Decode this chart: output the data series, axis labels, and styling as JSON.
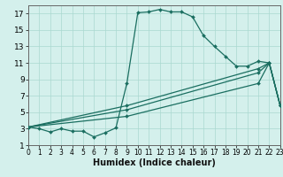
{
  "xlabel": "Humidex (Indice chaleur)",
  "bg_color": "#d4f0ec",
  "line_color": "#1a6e60",
  "grid_color": "#aad8d0",
  "series_main": {
    "x": [
      0,
      1,
      2,
      3,
      4,
      5,
      6,
      7,
      8,
      9,
      10,
      11,
      12,
      13,
      14,
      15,
      16,
      17,
      18,
      19,
      20,
      21,
      22,
      23
    ],
    "y": [
      3.2,
      3.0,
      2.6,
      3.0,
      2.7,
      2.7,
      2.0,
      2.5,
      3.1,
      8.5,
      17.1,
      17.2,
      17.5,
      17.2,
      17.2,
      16.6,
      14.3,
      13.0,
      11.8,
      10.6,
      10.6,
      11.2,
      11.0,
      5.8
    ]
  },
  "series_extra": [
    {
      "x": [
        0,
        9,
        21,
        22,
        23
      ],
      "y": [
        3.2,
        5.8,
        10.3,
        11.0,
        5.8
      ]
    },
    {
      "x": [
        0,
        9,
        21,
        22,
        23
      ],
      "y": [
        3.2,
        5.3,
        9.8,
        11.0,
        5.8
      ]
    },
    {
      "x": [
        0,
        9,
        21,
        22,
        23
      ],
      "y": [
        3.2,
        4.5,
        8.5,
        11.0,
        5.8
      ]
    }
  ],
  "xlim": [
    0,
    23
  ],
  "ylim": [
    1,
    18
  ],
  "xticks": [
    0,
    1,
    2,
    3,
    4,
    5,
    6,
    7,
    8,
    9,
    10,
    11,
    12,
    13,
    14,
    15,
    16,
    17,
    18,
    19,
    20,
    21,
    22,
    23
  ],
  "yticks": [
    1,
    3,
    5,
    7,
    9,
    11,
    13,
    15,
    17
  ],
  "xlabel_fontsize": 7,
  "tick_fontsize": 6
}
